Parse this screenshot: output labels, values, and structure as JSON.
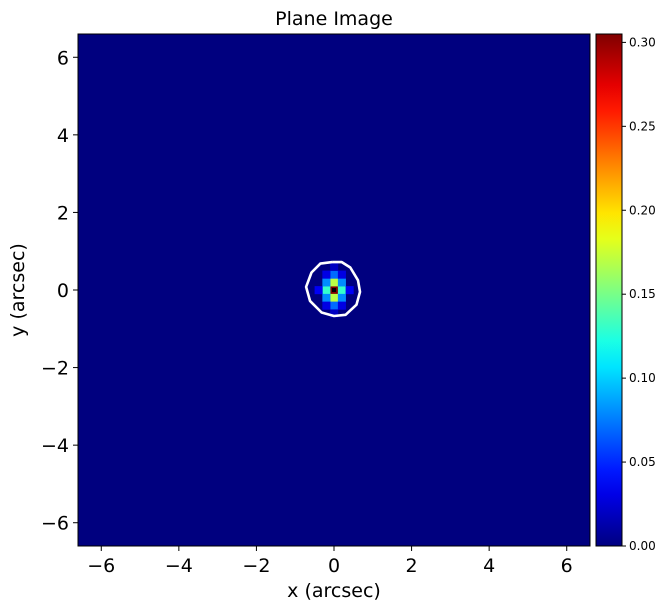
{
  "chart_data": {
    "type": "heatmap",
    "title": "Plane Image",
    "xlabel": "x (arcsec)",
    "ylabel": "y (arcsec)",
    "xlim": [
      -6.6,
      6.6
    ],
    "ylim": [
      -6.6,
      6.6
    ],
    "xticks": [
      -6,
      -4,
      -2,
      0,
      2,
      4,
      6
    ],
    "yticks": [
      -6,
      -4,
      -2,
      0,
      2,
      4,
      6
    ],
    "xtick_labels": [
      "−6",
      "−4",
      "−2",
      "0",
      "2",
      "4",
      "6"
    ],
    "ytick_labels": [
      "−6",
      "−4",
      "−2",
      "0",
      "2",
      "4",
      "6"
    ],
    "colormap": "jet",
    "background_color": "#00007f",
    "colorbar": {
      "range": [
        0.0,
        0.305
      ],
      "ticks": [
        0.0,
        0.05,
        0.1,
        0.15,
        0.2,
        0.25,
        0.3
      ],
      "tick_labels": [
        "0.00",
        "0.05",
        "0.10",
        "0.15",
        "0.20",
        "0.25",
        "0.30"
      ]
    },
    "pixel_scale": 0.2,
    "source_pixels": [
      {
        "x": 0.0,
        "y": 0.0,
        "value": 0.305
      },
      {
        "x": -0.2,
        "y": 0.0,
        "value": 0.13
      },
      {
        "x": 0.2,
        "y": 0.0,
        "value": 0.13
      },
      {
        "x": 0.0,
        "y": 0.2,
        "value": 0.17
      },
      {
        "x": 0.0,
        "y": -0.2,
        "value": 0.17
      },
      {
        "x": -0.2,
        "y": 0.2,
        "value": 0.08
      },
      {
        "x": 0.2,
        "y": 0.2,
        "value": 0.08
      },
      {
        "x": -0.2,
        "y": -0.2,
        "value": 0.08
      },
      {
        "x": 0.2,
        "y": -0.2,
        "value": 0.08
      },
      {
        "x": 0.0,
        "y": 0.4,
        "value": 0.07
      },
      {
        "x": 0.0,
        "y": -0.4,
        "value": 0.07
      },
      {
        "x": -0.4,
        "y": 0.0,
        "value": 0.035
      },
      {
        "x": 0.4,
        "y": 0.0,
        "value": 0.035
      },
      {
        "x": -0.2,
        "y": 0.4,
        "value": 0.03
      },
      {
        "x": 0.2,
        "y": 0.4,
        "value": 0.03
      },
      {
        "x": -0.2,
        "y": -0.4,
        "value": 0.03
      },
      {
        "x": 0.2,
        "y": -0.4,
        "value": 0.03
      },
      {
        "x": 0.0,
        "y": 0.6,
        "value": 0.02
      },
      {
        "x": 0.0,
        "y": -0.6,
        "value": 0.02
      }
    ],
    "contour": {
      "color": "#ffffff",
      "points": [
        [
          -0.05,
          0.72
        ],
        [
          0.2,
          0.72
        ],
        [
          0.42,
          0.58
        ],
        [
          0.62,
          0.25
        ],
        [
          0.67,
          -0.05
        ],
        [
          0.58,
          -0.38
        ],
        [
          0.3,
          -0.64
        ],
        [
          0.0,
          -0.67
        ],
        [
          -0.32,
          -0.58
        ],
        [
          -0.62,
          -0.28
        ],
        [
          -0.72,
          0.08
        ],
        [
          -0.58,
          0.45
        ],
        [
          -0.35,
          0.68
        ],
        [
          -0.05,
          0.72
        ]
      ]
    },
    "marker": {
      "x": 0.0,
      "y": 0.0,
      "color": "#000000"
    }
  }
}
